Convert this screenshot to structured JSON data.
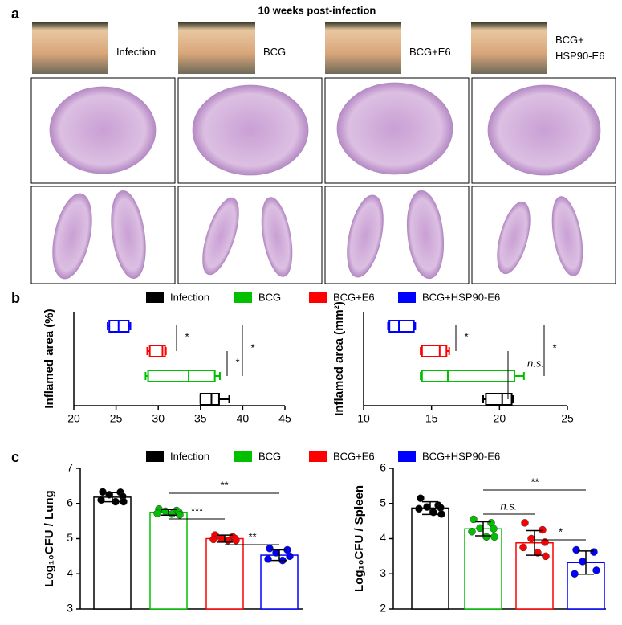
{
  "figure_a": {
    "label": "a",
    "title": "10 weeks post-infection",
    "groups": [
      "Infection",
      "BCG",
      "BCG+E6",
      "BCG+ HSP90-E6"
    ]
  },
  "chart_data": [
    {
      "type": "box",
      "panel": "b",
      "ylabel": "Inflamed area (%)",
      "xlim": [
        20,
        45
      ],
      "xticks": [
        20,
        25,
        30,
        35,
        40,
        45
      ],
      "series": [
        {
          "name": "Infection",
          "color": "#000000",
          "values": [
            35.0,
            35.0,
            36.3,
            37.2,
            38.4
          ]
        },
        {
          "name": "BCG",
          "color": "#00c000",
          "values": [
            28.5,
            28.8,
            33.6,
            36.7,
            37.3
          ]
        },
        {
          "name": "BCG+E6",
          "color": "#ff0000",
          "values": [
            28.7,
            29.0,
            30.5,
            30.8,
            30.9
          ]
        },
        {
          "name": "BCG+HSP90-E6",
          "color": "#0000ff",
          "values": [
            24.0,
            24.2,
            25.3,
            26.5,
            26.7
          ]
        }
      ],
      "annotations": [
        "*",
        "*",
        "*"
      ]
    },
    {
      "type": "box",
      "ylabel": "Inflamed area (mm²)",
      "xlim": [
        10,
        25
      ],
      "xticks": [
        10,
        15,
        20,
        25
      ],
      "series": [
        {
          "color": "#000000",
          "values": [
            18.8,
            19.0,
            20.2,
            20.9,
            21.0
          ]
        },
        {
          "color": "#00c000",
          "values": [
            14.2,
            14.3,
            16.2,
            21.1,
            21.8
          ]
        },
        {
          "color": "#ff0000",
          "values": [
            14.2,
            14.3,
            15.6,
            16.1,
            16.3
          ]
        },
        {
          "color": "#0000ff",
          "values": [
            11.8,
            11.9,
            12.6,
            13.7,
            13.8
          ]
        }
      ],
      "annotations": [
        "*",
        "n.s.",
        "*"
      ]
    },
    {
      "type": "bar",
      "panel": "c",
      "ylabel": "Log₁₀CFU / Lung",
      "ylim": [
        3,
        7
      ],
      "yticks": [
        3,
        4,
        5,
        6,
        7
      ],
      "series": [
        {
          "name": "Infection",
          "color": "#000000",
          "value": 6.18,
          "error": 0.13,
          "points": [
            6.33,
            6.32,
            6.25,
            6.2,
            6.1,
            6.05,
            6.05
          ]
        },
        {
          "name": "BCG",
          "color": "#00c000",
          "value": 5.75,
          "error": 0.08,
          "points": [
            5.84,
            5.8,
            5.78,
            5.75,
            5.72,
            5.7,
            5.68
          ]
        },
        {
          "name": "BCG+E6",
          "color": "#ff0000",
          "value": 5.0,
          "error": 0.1,
          "points": [
            5.1,
            5.05,
            5.0,
            5.0,
            4.98,
            4.95,
            4.95
          ]
        },
        {
          "name": "BCG+HSP90-E6",
          "color": "#0000ff",
          "value": 4.53,
          "error": 0.15,
          "points": [
            4.72,
            4.68,
            4.6,
            4.5,
            4.42,
            4.38
          ]
        }
      ],
      "annotations": [
        "**",
        "***",
        "**"
      ]
    },
    {
      "type": "bar",
      "ylabel": "Log₁₀CFU / Spleen",
      "ylim": [
        2,
        6
      ],
      "yticks": [
        2,
        3,
        4,
        5,
        6
      ],
      "series": [
        {
          "color": "#000000",
          "value": 4.87,
          "error": 0.18,
          "points": [
            5.15,
            4.95,
            4.9,
            4.88,
            4.85,
            4.75,
            4.7
          ]
        },
        {
          "color": "#00c000",
          "value": 4.28,
          "error": 0.2,
          "points": [
            4.55,
            4.45,
            4.3,
            4.28,
            4.2,
            4.05,
            4.05
          ]
        },
        {
          "color": "#ff0000",
          "value": 3.88,
          "error": 0.35,
          "points": [
            4.45,
            4.25,
            4.0,
            3.9,
            3.75,
            3.6,
            3.5
          ]
        },
        {
          "color": "#0000ff",
          "value": 3.32,
          "error": 0.33,
          "points": [
            3.68,
            3.62,
            3.35,
            3.1,
            3.0
          ]
        }
      ],
      "annotations": [
        "**",
        "n.s.",
        "*"
      ]
    }
  ]
}
